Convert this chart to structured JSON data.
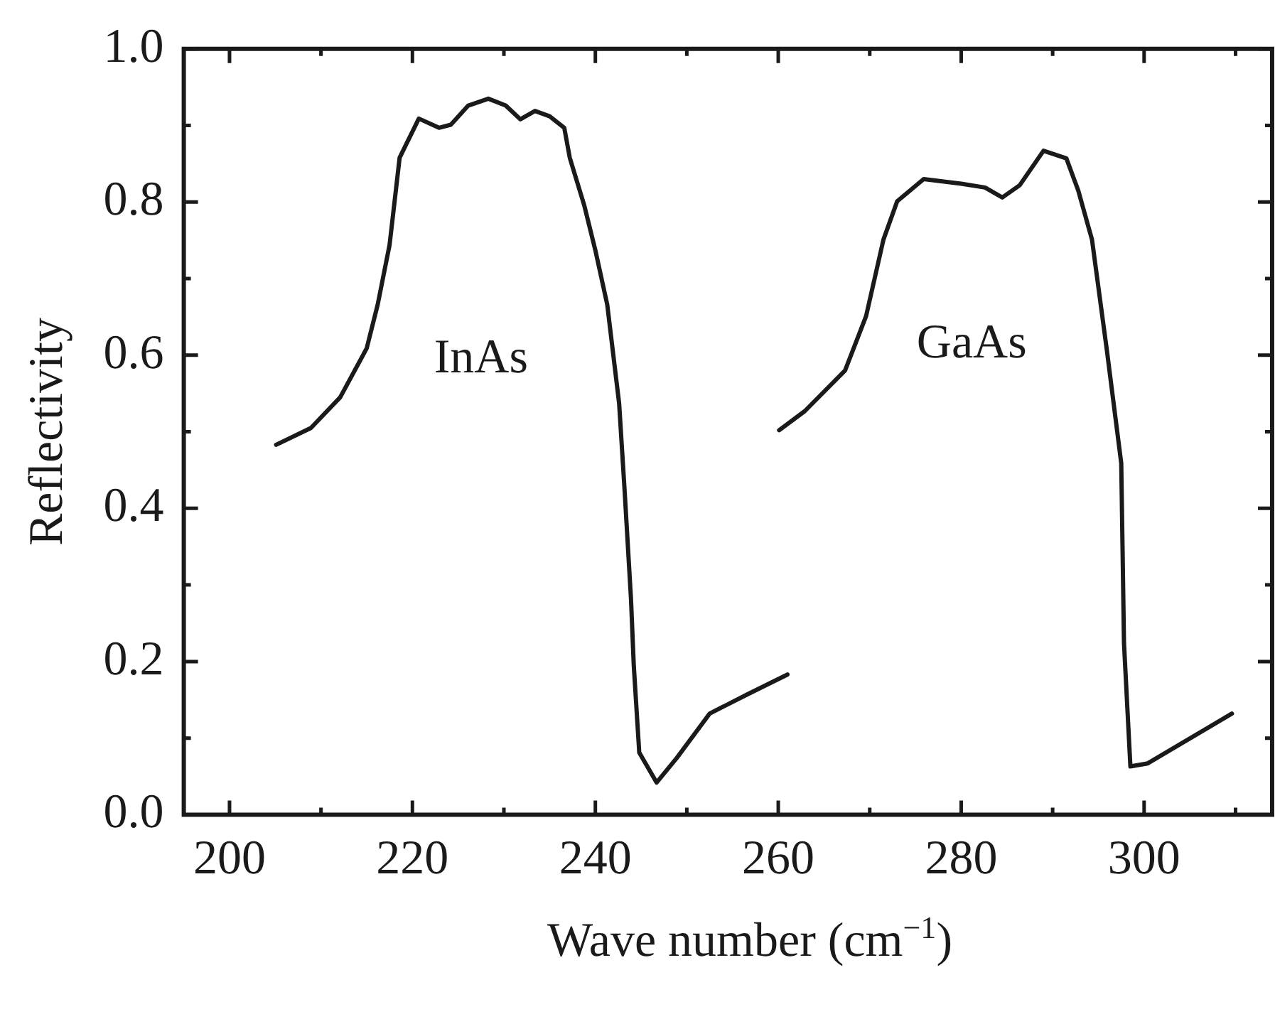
{
  "chart_data": {
    "type": "line",
    "xlabel": "Wave number (cm$^{−1}$)",
    "ylabel": "Reflectivity",
    "xlim": [
      195,
      314
    ],
    "ylim": [
      0,
      1
    ],
    "xticks": [
      200,
      {
        "value": 210,
        "label": null
      },
      220,
      {
        "value": 230,
        "label": null
      },
      240,
      {
        "value": 250,
        "label": null
      },
      260,
      {
        "value": 270,
        "label": null
      },
      280,
      {
        "value": 290,
        "label": null
      },
      300,
      {
        "value": 310,
        "label": null
      }
    ],
    "yticks": [
      "0.0",
      {
        "value": 0.1,
        "label": null
      },
      0.2,
      {
        "value": 0.3,
        "label": null
      },
      0.4,
      {
        "value": 0.5,
        "label": null
      },
      0.6,
      {
        "value": 0.7,
        "label": null
      },
      0.8,
      {
        "value": 0.9,
        "label": null
      },
      "1.0"
    ],
    "grid": false,
    "legend": false,
    "marker": "none",
    "line_style": "solid",
    "series": [
      {
        "name": "InAs",
        "color": "#1a1a1a",
        "x": [
          205.1,
          208.9,
          212.1,
          215.0,
          216.2,
          217.5,
          218.6,
          220.7,
          222.9,
          224.2,
          226.1,
          228.3,
          230.2,
          231.8,
          233.4,
          235.0,
          236.6,
          237.2,
          238.8,
          240.0,
          241.3,
          242.6,
          243.2,
          243.9,
          244.2,
          244.8,
          246.7,
          248.9,
          252.5,
          256.6,
          261.0
        ],
        "values": [
          0.483,
          0.505,
          0.545,
          0.609,
          0.666,
          0.744,
          0.858,
          0.909,
          0.897,
          0.901,
          0.926,
          0.935,
          0.926,
          0.908,
          0.919,
          0.912,
          0.897,
          0.858,
          0.795,
          0.737,
          0.666,
          0.537,
          0.423,
          0.281,
          0.195,
          0.081,
          0.042,
          0.074,
          0.132,
          0.157,
          0.183
        ]
      },
      {
        "name": "GaAs",
        "color": "#1a1a1a",
        "x": [
          260.1,
          262.9,
          267.3,
          269.6,
          271.5,
          273.0,
          275.9,
          280.0,
          282.6,
          284.5,
          286.4,
          289.0,
          291.5,
          292.8,
          294.3,
          295.9,
          297.5,
          297.8,
          298.5,
          300.4,
          309.6
        ],
        "values": [
          0.502,
          0.527,
          0.58,
          0.651,
          0.751,
          0.801,
          0.83,
          0.824,
          0.819,
          0.806,
          0.822,
          0.867,
          0.857,
          0.815,
          0.751,
          0.609,
          0.459,
          0.224,
          0.063,
          0.067,
          0.132
        ]
      }
    ]
  }
}
